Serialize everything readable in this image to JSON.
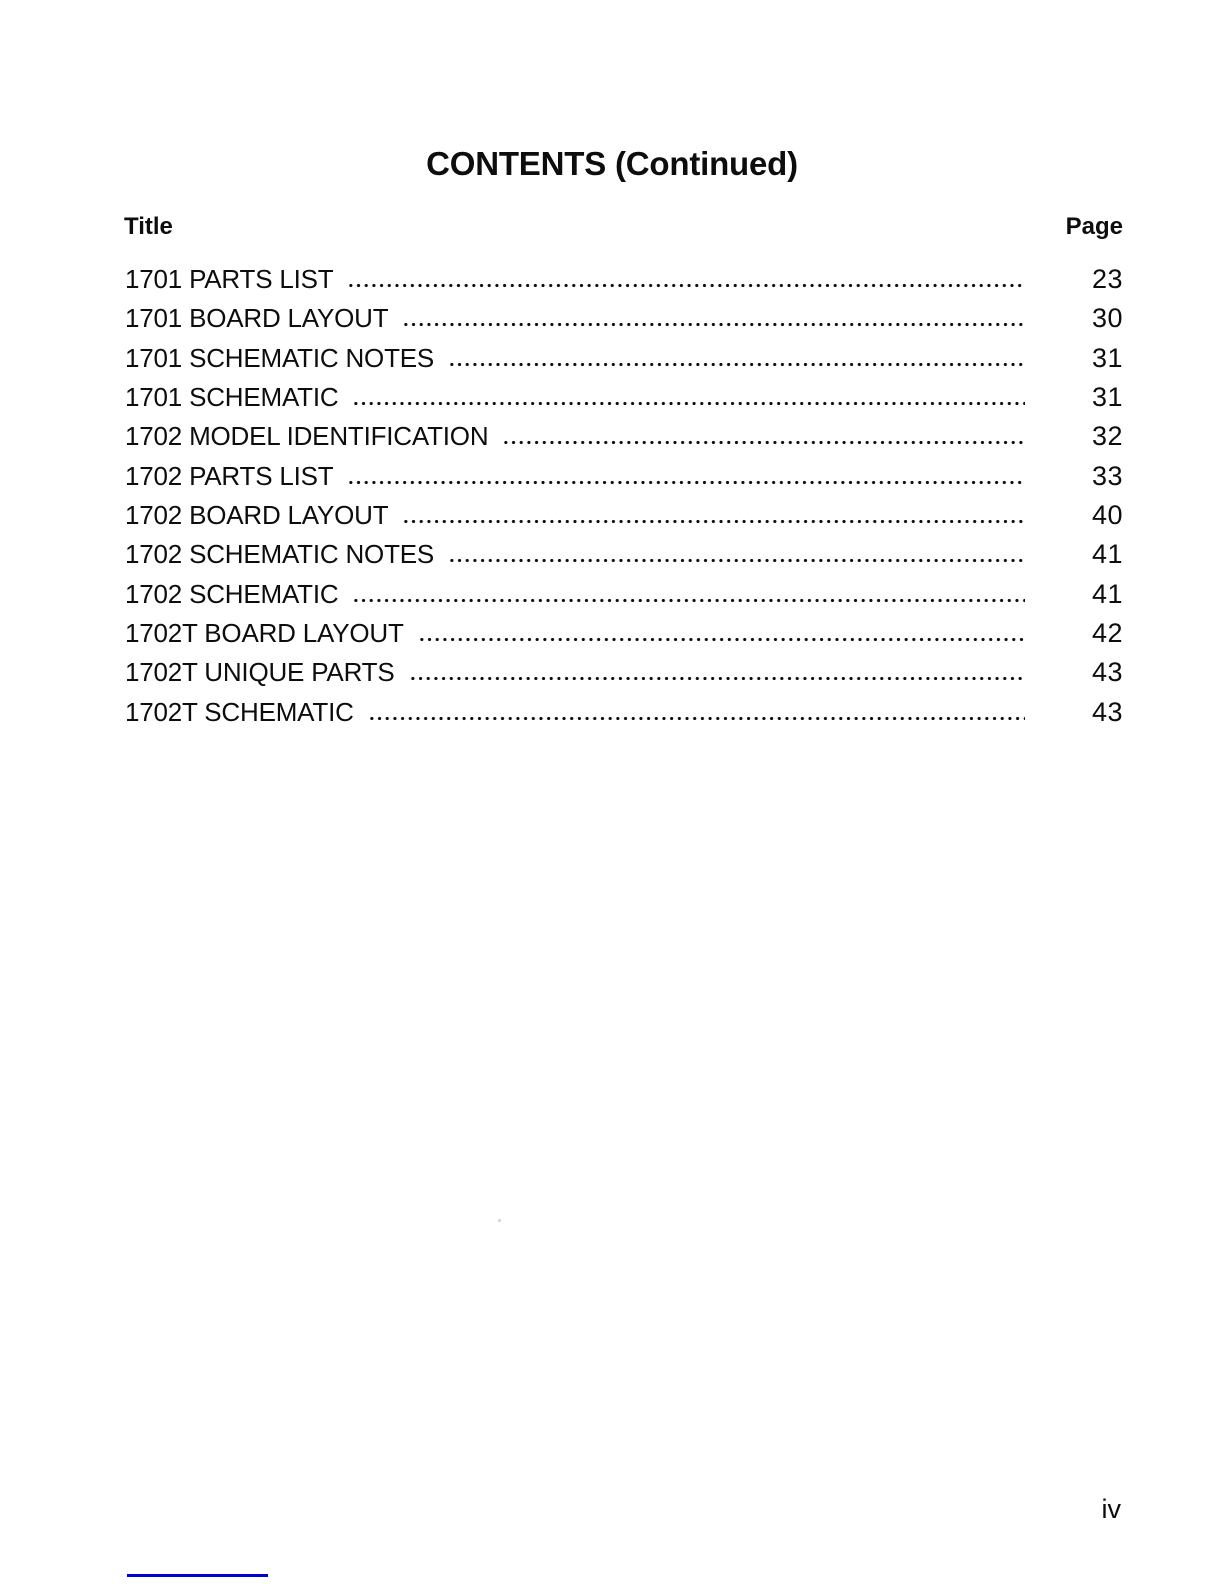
{
  "document": {
    "title": "CONTENTS (Continued)",
    "column_headers": {
      "title": "Title",
      "page": "Page"
    },
    "entries": [
      {
        "title": "1701 PARTS LIST",
        "page": "23"
      },
      {
        "title": "1701 BOARD LAYOUT",
        "page": "30"
      },
      {
        "title": "1701 SCHEMATIC NOTES",
        "page": "31"
      },
      {
        "title": "1701 SCHEMATIC",
        "page": "31"
      },
      {
        "title": "1702 MODEL IDENTIFICATION",
        "page": "32"
      },
      {
        "title": "1702 PARTS LIST",
        "page": "33"
      },
      {
        "title": "1702 BOARD LAYOUT",
        "page": "40"
      },
      {
        "title": "1702 SCHEMATIC NOTES",
        "page": "41"
      },
      {
        "title": "1702 SCHEMATIC",
        "page": "41"
      },
      {
        "title": "1702T BOARD LAYOUT",
        "page": "42"
      },
      {
        "title": "1702T UNIQUE PARTS",
        "page": "43"
      },
      {
        "title": "1702T SCHEMATIC",
        "page": "43"
      }
    ],
    "footer": {
      "page_number": "iv"
    },
    "colors": {
      "ink": "#0d0d0d",
      "rule_blue": "#0000cc",
      "paper": "#ffffff"
    }
  }
}
